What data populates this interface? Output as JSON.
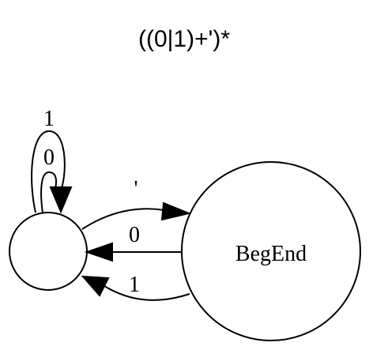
{
  "title": "((0|1)+')*",
  "nodes": {
    "start": {
      "label": ""
    },
    "accept": {
      "label": "BegEnd"
    }
  },
  "edges": {
    "self_loop_outer": {
      "from": "start",
      "to": "start",
      "label": "1"
    },
    "self_loop_inner": {
      "from": "start",
      "to": "start",
      "label": "0"
    },
    "start_to_accept": {
      "from": "start",
      "to": "accept",
      "label": "'"
    },
    "accept_to_start_0": {
      "from": "accept",
      "to": "start",
      "label": "0"
    },
    "accept_to_start_1": {
      "from": "accept",
      "to": "start",
      "label": "1"
    }
  }
}
